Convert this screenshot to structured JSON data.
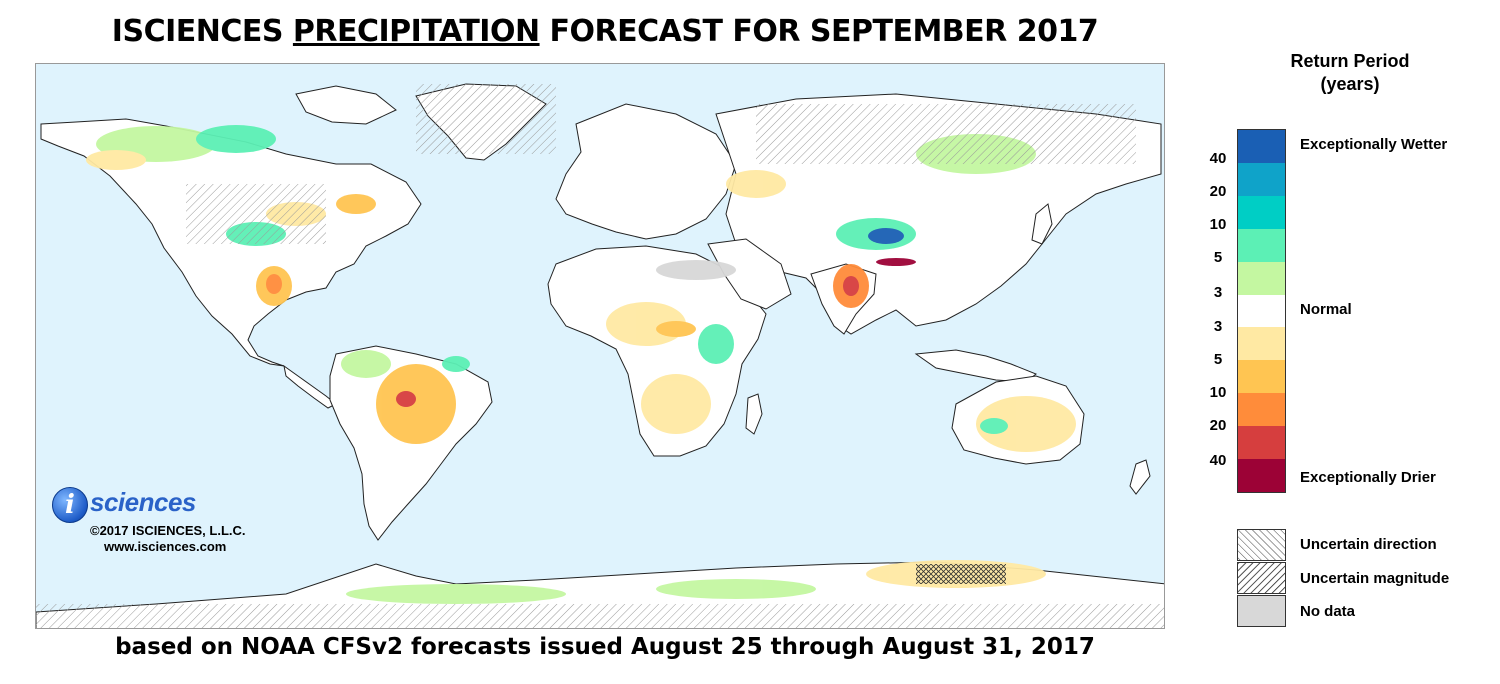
{
  "title": {
    "prefix": "ISCIENCES ",
    "underlined": "PRECIPITATION",
    "suffix": " FORECAST FOR SEPTEMBER 2017"
  },
  "subtitle": "based on NOAA CFSv2 forecasts issued August 25 through August 31, 2017",
  "logo": {
    "mark": "i",
    "word": "sciences",
    "copyright": "©2017 ISCIENCES, L.L.C.",
    "url": "www.isciences.com"
  },
  "legend": {
    "title_line1": "Return Period",
    "title_line2": "(years)",
    "wet_ticks": [
      "40",
      "20",
      "10",
      "5",
      "3"
    ],
    "dry_ticks": [
      "3",
      "5",
      "10",
      "20",
      "40"
    ],
    "colors": [
      "#1a5fb4",
      "#0fa3c9",
      "#00cec5",
      "#5cf0b5",
      "#c4f7a1",
      "#ffffff",
      "#ffe9a3",
      "#ffc552",
      "#ff8c3a",
      "#d63e3e",
      "#9c0236"
    ],
    "labels": {
      "wetter": "Exceptionally Wetter",
      "normal": "Normal",
      "drier": "Exceptionally Drier"
    },
    "patterns": {
      "uncertain_direction": "Uncertain direction",
      "uncertain_magnitude": "Uncertain magnitude",
      "no_data": "No data"
    }
  },
  "map_colors": {
    "ocean": "#dff3fd",
    "land": "#ffffff",
    "border": "#222222"
  }
}
